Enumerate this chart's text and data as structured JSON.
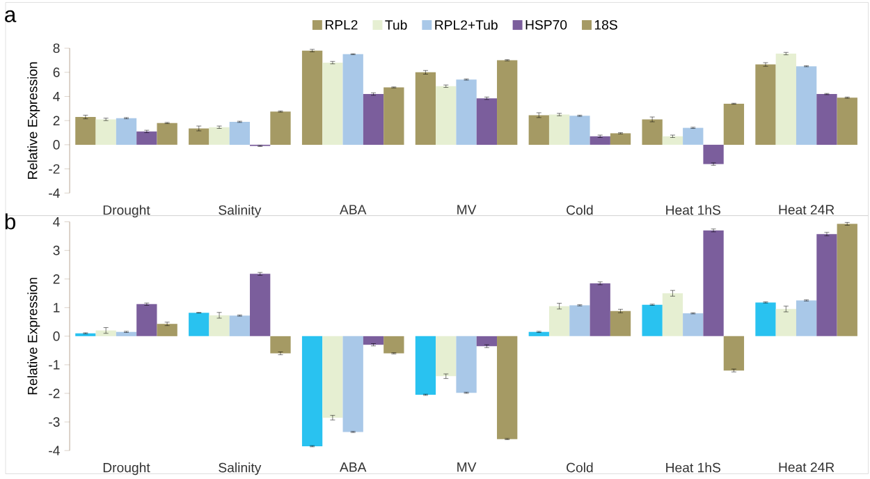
{
  "chart_data": [
    {
      "type": "bar",
      "title": "a",
      "ylabel": "Relative Expression",
      "categories": [
        "Drought",
        "Salinity",
        "ABA",
        "MV",
        "Cold",
        "Heat 1hS",
        "Heat 24R"
      ],
      "ylim": [
        -4,
        8
      ],
      "yticks": [
        -4,
        -2,
        0,
        2,
        4,
        6,
        8
      ],
      "legend": "top",
      "series": [
        {
          "name": "RPL2",
          "color": "#a59a64",
          "values": [
            2.3,
            1.35,
            7.8,
            6.0,
            2.45,
            2.1,
            6.65
          ],
          "errors": [
            0.15,
            0.2,
            0.1,
            0.15,
            0.2,
            0.2,
            0.15
          ]
        },
        {
          "name": "Tub",
          "color": "#e6efd2",
          "values": [
            2.1,
            1.45,
            6.8,
            4.85,
            2.5,
            0.7,
            7.55
          ],
          "errors": [
            0.1,
            0.1,
            0.1,
            0.1,
            0.1,
            0.1,
            0.1
          ]
        },
        {
          "name": "RPL2+Tub",
          "color": "#a9c8e8",
          "values": [
            2.2,
            1.9,
            7.5,
            5.4,
            2.4,
            1.4,
            6.5
          ],
          "errors": [
            0.05,
            0.05,
            0.04,
            0.05,
            0.05,
            0.05,
            0.04
          ]
        },
        {
          "name": "HSP70",
          "color": "#7b5e9c",
          "values": [
            1.1,
            -0.1,
            4.2,
            3.85,
            0.7,
            -1.6,
            4.2
          ],
          "errors": [
            0.1,
            0.05,
            0.1,
            0.1,
            0.1,
            0.1,
            0.05
          ]
        },
        {
          "name": "18S",
          "color": "#a59a64",
          "values": [
            1.8,
            2.75,
            4.75,
            7.0,
            0.95,
            3.4,
            3.9
          ],
          "errors": [
            0.05,
            0.05,
            0.04,
            0.05,
            0.05,
            0.04,
            0.05
          ]
        }
      ]
    },
    {
      "type": "bar",
      "title": "b",
      "ylabel": "Relative Expression",
      "categories": [
        "Drought",
        "Salinity",
        "ABA",
        "MV",
        "Cold",
        "Heat 1hS",
        "Heat 24R"
      ],
      "ylim": [
        -4,
        4
      ],
      "yticks": [
        -4,
        -3,
        -2,
        -1,
        0,
        1,
        2,
        3,
        4
      ],
      "series": [
        {
          "color": "#29c2f0",
          "values": [
            0.1,
            0.82,
            -3.85,
            -2.05,
            0.15,
            1.1,
            1.18
          ],
          "errors": [
            0.02,
            0.01,
            0.02,
            0.02,
            0.02,
            0.02,
            0.02
          ]
        },
        {
          "color": "#e6efd2",
          "values": [
            0.2,
            0.73,
            -2.85,
            -1.4,
            1.05,
            1.5,
            0.95
          ],
          "errors": [
            0.1,
            0.1,
            0.08,
            0.08,
            0.1,
            0.1,
            0.1
          ]
        },
        {
          "color": "#a9c8e8",
          "values": [
            0.15,
            0.72,
            -3.35,
            -1.98,
            1.08,
            0.8,
            1.25
          ],
          "errors": [
            0.02,
            0.02,
            0.02,
            0.02,
            0.02,
            0.02,
            0.02
          ]
        },
        {
          "color": "#7b5e9c",
          "values": [
            1.12,
            2.18,
            -0.3,
            -0.35,
            1.85,
            3.7,
            3.57
          ],
          "errors": [
            0.04,
            0.05,
            0.04,
            0.05,
            0.05,
            0.05,
            0.06
          ]
        },
        {
          "color": "#a59a64",
          "values": [
            0.43,
            -0.6,
            -0.6,
            -3.6,
            0.88,
            -1.2,
            3.93
          ],
          "errors": [
            0.06,
            0.05,
            0.02,
            0.02,
            0.06,
            0.05,
            0.05
          ]
        }
      ]
    }
  ]
}
